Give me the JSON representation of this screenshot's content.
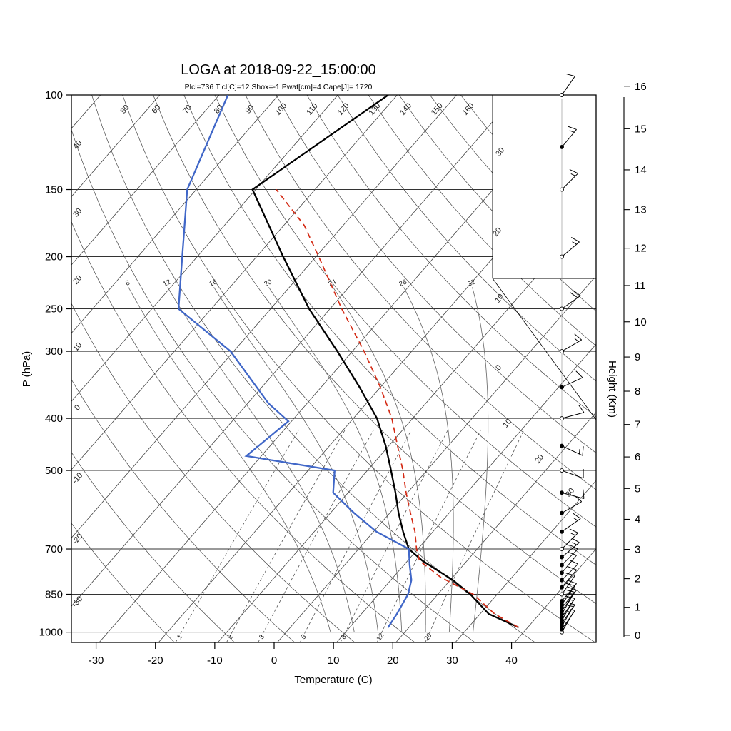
{
  "header": {
    "title": "LOGA at 2018-09-22_15:00:00",
    "params_line": "Plcl=736 Tlcl[C]=12 Shox=-1 Pwat[cm]=4 Cape[J]= 1720",
    "params_color": "#c84a14"
  },
  "axes": {
    "x_label": "Temperature (C)",
    "x_ticks": [
      -30,
      -20,
      -10,
      0,
      10,
      20,
      30,
      40
    ],
    "y_left_label": "P (hPa)",
    "p_ticks": [
      100,
      150,
      200,
      250,
      300,
      400,
      500,
      700,
      850,
      1000
    ],
    "y_right_label": "Height (Km)",
    "z_ticks": [
      0,
      1,
      2,
      3,
      4,
      5,
      6,
      7,
      8,
      9,
      10,
      11,
      12,
      13,
      14,
      15,
      16
    ]
  },
  "background": {
    "dry_adiabat_labels": [
      50,
      60,
      70,
      80,
      90,
      100,
      110,
      120,
      130,
      140,
      150,
      160
    ],
    "moist_adiabat_labels": [
      8,
      12,
      16,
      20,
      24,
      28,
      32
    ],
    "mixing_ratio_labels": [
      1,
      2,
      3,
      5,
      8,
      12,
      20
    ],
    "isotherm_left_labels": [
      40,
      30,
      20,
      10,
      0,
      -10,
      -20,
      -30
    ],
    "isotherm_right_labels": [
      30,
      20,
      10,
      0,
      10,
      20,
      30
    ]
  },
  "chart_data": {
    "type": "skewt_log_p_sounding",
    "pressure_range_hpa": [
      100,
      1045
    ],
    "temperature_axis_c": [
      -30,
      40
    ],
    "series": [
      {
        "name": "temperature",
        "color": "#000000",
        "style": "solid",
        "points": [
          [
            980,
            39
          ],
          [
            925,
            32
          ],
          [
            850,
            26
          ],
          [
            800,
            21
          ],
          [
            736,
            13
          ],
          [
            700,
            9
          ],
          [
            650,
            5.5
          ],
          [
            600,
            2
          ],
          [
            550,
            -1.5
          ],
          [
            500,
            -5.5
          ],
          [
            450,
            -10
          ],
          [
            400,
            -15.5
          ],
          [
            350,
            -23
          ],
          [
            300,
            -32
          ],
          [
            250,
            -43
          ],
          [
            200,
            -55
          ],
          [
            150,
            -70
          ],
          [
            100,
            -61
          ]
        ]
      },
      {
        "name": "dewpoint",
        "color": "#4067c8",
        "style": "solid",
        "points": [
          [
            980,
            17
          ],
          [
            925,
            16.5
          ],
          [
            850,
            15.5
          ],
          [
            800,
            14
          ],
          [
            750,
            11.5
          ],
          [
            700,
            9
          ],
          [
            650,
            1
          ],
          [
            600,
            -5.5
          ],
          [
            550,
            -12
          ],
          [
            500,
            -15
          ],
          [
            470,
            -32
          ],
          [
            405,
            -30
          ],
          [
            375,
            -36
          ],
          [
            300,
            -50
          ],
          [
            250,
            -65
          ],
          [
            200,
            -72
          ],
          [
            150,
            -81
          ],
          [
            100,
            -88
          ]
        ]
      },
      {
        "name": "parcel",
        "color": "#d42a14",
        "style": "dashed",
        "points": [
          [
            980,
            39
          ],
          [
            925,
            33
          ],
          [
            850,
            26.5
          ],
          [
            790,
            18.5
          ],
          [
            736,
            12.5
          ],
          [
            700,
            10.3
          ],
          [
            650,
            7.5
          ],
          [
            600,
            4
          ],
          [
            550,
            0.3
          ],
          [
            500,
            -3.5
          ],
          [
            450,
            -8
          ],
          [
            400,
            -13
          ],
          [
            350,
            -19.5
          ],
          [
            300,
            -27.5
          ],
          [
            250,
            -37.5
          ],
          [
            200,
            -49
          ],
          [
            175,
            -56
          ],
          [
            150,
            -66
          ]
        ]
      }
    ],
    "wind_barbs": [
      [
        1000,
        5,
        -60,
        1
      ],
      [
        988,
        5,
        -55,
        0
      ],
      [
        975,
        5,
        -60,
        0
      ],
      [
        963,
        8,
        -55,
        0
      ],
      [
        950,
        8,
        -60,
        0
      ],
      [
        938,
        10,
        -55,
        0
      ],
      [
        925,
        10,
        -60,
        0
      ],
      [
        913,
        10,
        -55,
        0
      ],
      [
        900,
        10,
        -50,
        0
      ],
      [
        888,
        12,
        -55,
        0
      ],
      [
        875,
        10,
        -50,
        0
      ],
      [
        850,
        10,
        -55,
        1
      ],
      [
        825,
        12,
        -50,
        0
      ],
      [
        800,
        10,
        -45,
        0
      ],
      [
        775,
        10,
        -50,
        0
      ],
      [
        750,
        12,
        -45,
        0
      ],
      [
        725,
        15,
        -40,
        0
      ],
      [
        700,
        15,
        -45,
        1
      ],
      [
        650,
        15,
        -35,
        0
      ],
      [
        600,
        12,
        -30,
        0
      ],
      [
        550,
        12,
        15,
        0
      ],
      [
        500,
        10,
        20,
        1
      ],
      [
        450,
        15,
        25,
        0
      ],
      [
        400,
        10,
        -15,
        1
      ],
      [
        350,
        12,
        -25,
        0
      ],
      [
        300,
        15,
        -30,
        1
      ],
      [
        250,
        20,
        -35,
        1
      ],
      [
        200,
        15,
        -40,
        1
      ],
      [
        150,
        18,
        -45,
        1
      ],
      [
        125,
        15,
        -50,
        0
      ],
      [
        100,
        10,
        -55,
        1
      ]
    ]
  }
}
